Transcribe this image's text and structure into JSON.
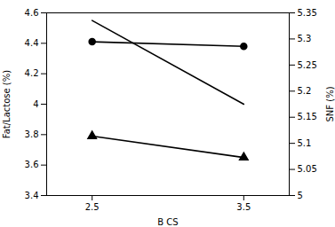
{
  "chart_data": {
    "type": "line",
    "x": [
      2.5,
      3.5
    ],
    "series": [
      {
        "color": "#000000",
        "marker": "none",
        "values": [
          4.55,
          4.0
        ]
      },
      {
        "color": "#000000",
        "marker": "circle",
        "values": [
          4.41,
          4.38
        ]
      },
      {
        "color": "#000000",
        "marker": "triangle",
        "values": [
          3.79,
          3.65
        ]
      }
    ],
    "xlabel": "B CS",
    "ylabel": "Fat/Lactose (%)",
    "y2label": "SNF (%)",
    "xlim": [
      2.2,
      3.8
    ],
    "xticks": [
      2.5,
      3.5
    ],
    "ylim": [
      3.4,
      4.6
    ],
    "yticks": [
      3.4,
      3.6,
      3.8,
      4,
      4.2,
      4.4,
      4.6
    ],
    "y2lim": [
      5,
      5.35
    ],
    "y2ticks": [
      5,
      5.05,
      5.1,
      5.15,
      5.2,
      5.25,
      5.3,
      5.35
    ],
    "grid": false
  }
}
